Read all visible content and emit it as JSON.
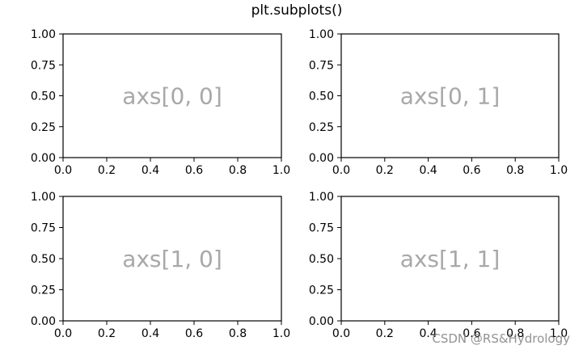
{
  "chart_data": {
    "type": "subplots",
    "title": "plt.subplots()",
    "grid": false,
    "subplots": [
      {
        "label": "axs[0, 0]",
        "xlim": [
          0.0,
          1.0
        ],
        "ylim": [
          0.0,
          1.0
        ],
        "xticks": [
          "0.0",
          "0.2",
          "0.4",
          "0.6",
          "0.8",
          "1.0"
        ],
        "yticks": [
          "0.00",
          "0.25",
          "0.50",
          "0.75",
          "1.00"
        ],
        "series": []
      },
      {
        "label": "axs[0, 1]",
        "xlim": [
          0.0,
          1.0
        ],
        "ylim": [
          0.0,
          1.0
        ],
        "xticks": [
          "0.0",
          "0.2",
          "0.4",
          "0.6",
          "0.8",
          "1.0"
        ],
        "yticks": [
          "0.00",
          "0.25",
          "0.50",
          "0.75",
          "1.00"
        ],
        "series": []
      },
      {
        "label": "axs[1, 0]",
        "xlim": [
          0.0,
          1.0
        ],
        "ylim": [
          0.0,
          1.0
        ],
        "xticks": [
          "0.0",
          "0.2",
          "0.4",
          "0.6",
          "0.8",
          "1.0"
        ],
        "yticks": [
          "0.00",
          "0.25",
          "0.50",
          "0.75",
          "1.00"
        ],
        "series": []
      },
      {
        "label": "axs[1, 1]",
        "xlim": [
          0.0,
          1.0
        ],
        "ylim": [
          0.0,
          1.0
        ],
        "xticks": [
          "0.0",
          "0.2",
          "0.4",
          "0.6",
          "0.8",
          "1.0"
        ],
        "yticks": [
          "0.00",
          "0.25",
          "0.50",
          "0.75",
          "1.00"
        ],
        "series": []
      }
    ]
  },
  "watermark": "CSDN @RS&Hydrology",
  "colors": {
    "axis": "#000000",
    "panel_label": "#a8a8a8",
    "watermark": "#7f7f7f"
  }
}
